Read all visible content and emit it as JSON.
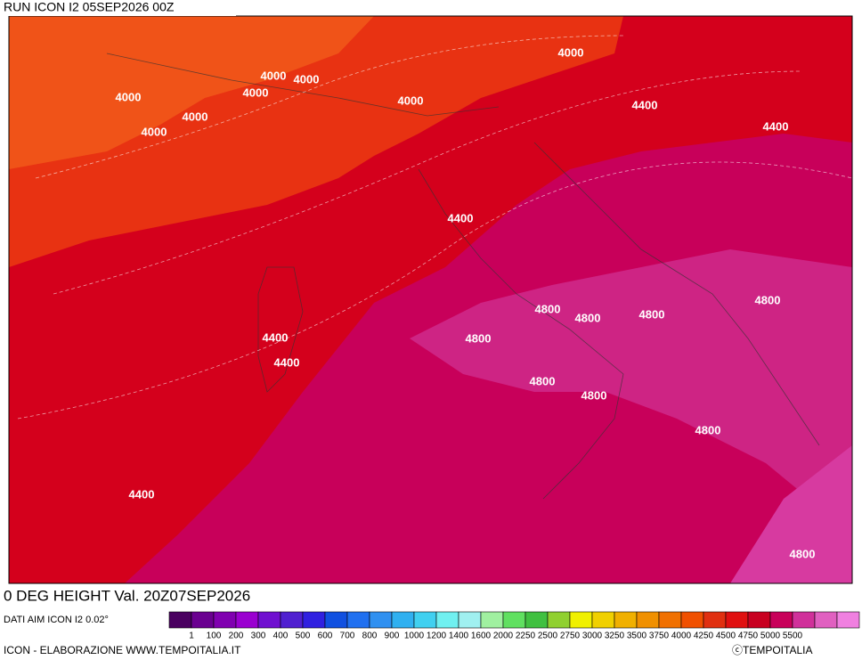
{
  "header": {
    "run": "RUN ICON I2 05SEP2026 00Z"
  },
  "title": "0 DEG HEIGHT Val. 20Z07SEP2026",
  "source": "DATI AIM ICON I2 0.02°",
  "footer": {
    "left": "ICON - ELABORAZIONE WWW.TEMPOITALIA.IT",
    "right": "ⓒTEMPOITALIA"
  },
  "legend": {
    "colors": [
      "#4a0060",
      "#6a0090",
      "#8000b0",
      "#9a00d0",
      "#7010d0",
      "#5020d0",
      "#3020e0",
      "#1050e0",
      "#2070f0",
      "#3090f0",
      "#30b0f0",
      "#40d0f0",
      "#70f0f0",
      "#a0f0f0",
      "#a0f0a0",
      "#60e060",
      "#40c040",
      "#90d030",
      "#f0f000",
      "#f0d000",
      "#f0b000",
      "#f09000",
      "#f07000",
      "#f05000",
      "#e03010",
      "#e01010",
      "#c80020",
      "#c8005a",
      "#d0309a",
      "#e060c0",
      "#f080e0"
    ],
    "labels": [
      "1",
      "100",
      "200",
      "300",
      "400",
      "500",
      "600",
      "700",
      "800",
      "900",
      "1000",
      "1200",
      "1400",
      "1600",
      "2000",
      "2250",
      "2500",
      "2750",
      "3000",
      "3250",
      "3500",
      "3750",
      "4000",
      "4250",
      "4500",
      "4750",
      "5000",
      "5500"
    ]
  },
  "map": {
    "labels": [
      "4000",
      "4000",
      "4000",
      "4000",
      "4000",
      "4000",
      "4000",
      "4000",
      "4400",
      "4400",
      "4400",
      "4400",
      "4400",
      "4400",
      "4800",
      "4800",
      "4800",
      "4800",
      "4800",
      "4800",
      "4800",
      "4800",
      "4800"
    ]
  }
}
